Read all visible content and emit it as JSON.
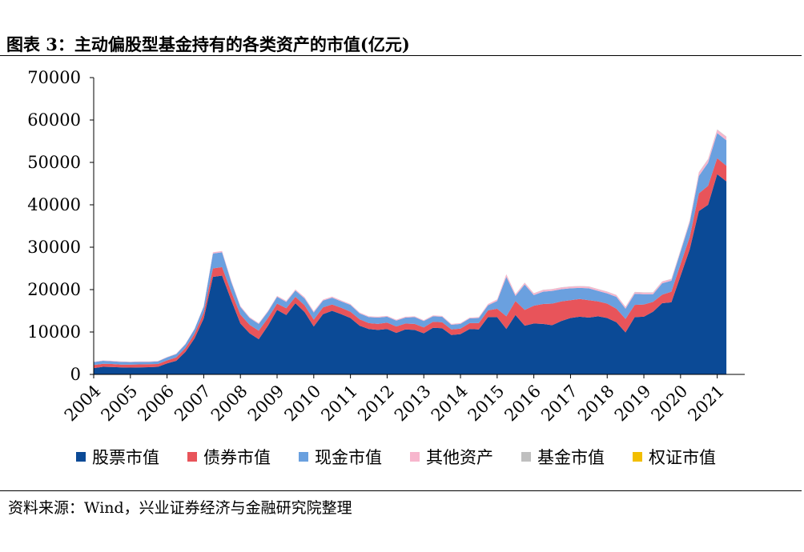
{
  "title": "图表 3：主动偏股型基金持有的各类资产的市值(亿元)",
  "source": "资料来源：Wind，兴业证券经济与金融研究院整理",
  "chart_data": {
    "type": "area",
    "stacked": true,
    "ylim": [
      0,
      70000
    ],
    "yticks": [
      "0",
      "10000",
      "20000",
      "30000",
      "40000",
      "50000",
      "60000",
      "70000"
    ],
    "ytick_values": [
      0,
      10000,
      20000,
      30000,
      40000,
      50000,
      60000,
      70000
    ],
    "xticks": [
      "2004",
      "2005",
      "2006",
      "2007",
      "2008",
      "2009",
      "2010",
      "2011",
      "2012",
      "2013",
      "2014",
      "2015",
      "2016",
      "2017",
      "2018",
      "2019",
      "2020",
      "2021"
    ],
    "xtick_values": [
      2004,
      2005,
      2006,
      2007,
      2008,
      2009,
      2010,
      2011,
      2012,
      2013,
      2014,
      2015,
      2016,
      2017,
      2018,
      2019,
      2020,
      2021
    ],
    "x": [
      2004.0,
      2004.25,
      2004.5,
      2004.75,
      2005.0,
      2005.25,
      2005.5,
      2005.75,
      2006.0,
      2006.25,
      2006.5,
      2006.75,
      2007.0,
      2007.25,
      2007.5,
      2007.75,
      2008.0,
      2008.25,
      2008.5,
      2008.75,
      2009.0,
      2009.25,
      2009.5,
      2009.75,
      2010.0,
      2010.25,
      2010.5,
      2010.75,
      2011.0,
      2011.25,
      2011.5,
      2011.75,
      2012.0,
      2012.25,
      2012.5,
      2012.75,
      2013.0,
      2013.25,
      2013.5,
      2013.75,
      2014.0,
      2014.25,
      2014.5,
      2014.75,
      2015.0,
      2015.25,
      2015.5,
      2015.75,
      2016.0,
      2016.25,
      2016.5,
      2016.75,
      2017.0,
      2017.25,
      2017.5,
      2017.75,
      2018.0,
      2018.25,
      2018.5,
      2018.75,
      2019.0,
      2019.25,
      2019.5,
      2019.75,
      2020.0,
      2020.25,
      2020.5,
      2020.75,
      2021.0,
      2021.25
    ],
    "series": [
      {
        "name": "股票市值",
        "color": "#0b4a96",
        "values": [
          1500,
          1800,
          1750,
          1650,
          1600,
          1650,
          1700,
          1800,
          2600,
          3200,
          5300,
          8500,
          13200,
          23000,
          23300,
          17500,
          12000,
          9700,
          8300,
          11500,
          15200,
          14000,
          16800,
          14700,
          11300,
          14200,
          15000,
          14200,
          13300,
          11500,
          10700,
          10500,
          10700,
          9800,
          10600,
          10500,
          9700,
          11000,
          10900,
          9300,
          9500,
          10700,
          10600,
          13500,
          13500,
          10700,
          14000,
          11500,
          12000,
          11900,
          11600,
          12600,
          13300,
          13600,
          13400,
          13700,
          13300,
          12300,
          9900,
          13500,
          13600,
          14800,
          16800,
          17000,
          23200,
          29500,
          38500,
          40000,
          47200,
          45500
        ]
      },
      {
        "name": "债券市值",
        "color": "#e8545a",
        "values": [
          700,
          700,
          700,
          650,
          700,
          700,
          700,
          650,
          700,
          800,
          900,
          1100,
          1400,
          2000,
          2000,
          2000,
          2100,
          2000,
          2000,
          1800,
          1500,
          1600,
          1500,
          1600,
          1600,
          1600,
          1500,
          1500,
          1500,
          1500,
          1400,
          1400,
          1500,
          1500,
          1400,
          1400,
          1400,
          1400,
          1400,
          1300,
          1300,
          1400,
          1500,
          1600,
          2000,
          3000,
          3300,
          3700,
          4200,
          4700,
          5100,
          4600,
          4200,
          4200,
          4100,
          3500,
          3400,
          3200,
          3200,
          2900,
          2900,
          2300,
          2000,
          2500,
          2800,
          2900,
          4200,
          4500,
          3800,
          3700
        ]
      },
      {
        "name": "现金市值",
        "color": "#6aa0df",
        "values": [
          700,
          700,
          650,
          650,
          600,
          600,
          550,
          600,
          700,
          800,
          900,
          1100,
          1400,
          3500,
          3500,
          2300,
          1800,
          1600,
          1600,
          1500,
          1600,
          1500,
          1500,
          1600,
          1700,
          1600,
          1600,
          1500,
          1600,
          1400,
          1400,
          1500,
          1400,
          1400,
          1400,
          1600,
          1500,
          1300,
          1300,
          1100,
          1100,
          1100,
          1200,
          1200,
          1800,
          9300,
          1200,
          6000,
          2500,
          2900,
          3000,
          2900,
          2800,
          2600,
          2800,
          2500,
          2400,
          2800,
          2400,
          2600,
          2400,
          1800,
          2700,
          2600,
          2900,
          3400,
          4100,
          5400,
          5900,
          6000
        ]
      },
      {
        "name": "其他资产",
        "color": "#f7b6cd",
        "values": [
          100,
          100,
          100,
          100,
          100,
          100,
          100,
          100,
          100,
          100,
          100,
          100,
          150,
          300,
          300,
          300,
          250,
          200,
          200,
          200,
          200,
          250,
          250,
          300,
          300,
          250,
          250,
          250,
          200,
          200,
          200,
          200,
          200,
          200,
          200,
          200,
          200,
          200,
          200,
          200,
          200,
          200,
          200,
          300,
          400,
          600,
          400,
          400,
          400,
          400,
          400,
          400,
          400,
          400,
          400,
          400,
          400,
          400,
          400,
          400,
          400,
          400,
          400,
          400,
          400,
          500,
          800,
          800,
          800,
          800
        ]
      },
      {
        "name": "基金市值",
        "color": "#bfbfbf",
        "values": [
          0,
          0,
          0,
          0,
          0,
          0,
          0,
          0,
          0,
          0,
          0,
          0,
          0,
          0,
          0,
          0,
          0,
          0,
          0,
          0,
          0,
          0,
          0,
          0,
          0,
          0,
          0,
          0,
          0,
          0,
          0,
          0,
          0,
          0,
          0,
          0,
          0,
          0,
          0,
          0,
          0,
          0,
          0,
          0,
          0,
          50,
          50,
          50,
          50,
          50,
          50,
          50,
          50,
          50,
          50,
          50,
          50,
          50,
          50,
          50,
          50,
          50,
          50,
          50,
          50,
          100,
          100,
          100,
          100,
          100
        ]
      },
      {
        "name": "权证市值",
        "color": "#f2be00",
        "values": [
          0,
          0,
          0,
          0,
          0,
          0,
          0,
          0,
          0,
          0,
          0,
          0,
          0,
          0,
          0,
          0,
          0,
          0,
          0,
          0,
          0,
          0,
          0,
          0,
          0,
          0,
          0,
          0,
          0,
          0,
          0,
          0,
          0,
          0,
          0,
          0,
          0,
          0,
          0,
          0,
          0,
          0,
          0,
          0,
          0,
          0,
          0,
          0,
          0,
          0,
          0,
          0,
          0,
          0,
          0,
          0,
          0,
          0,
          0,
          0,
          0,
          0,
          0,
          0,
          0,
          0,
          0,
          0,
          0,
          0
        ]
      }
    ],
    "legend_position": "bottom"
  }
}
